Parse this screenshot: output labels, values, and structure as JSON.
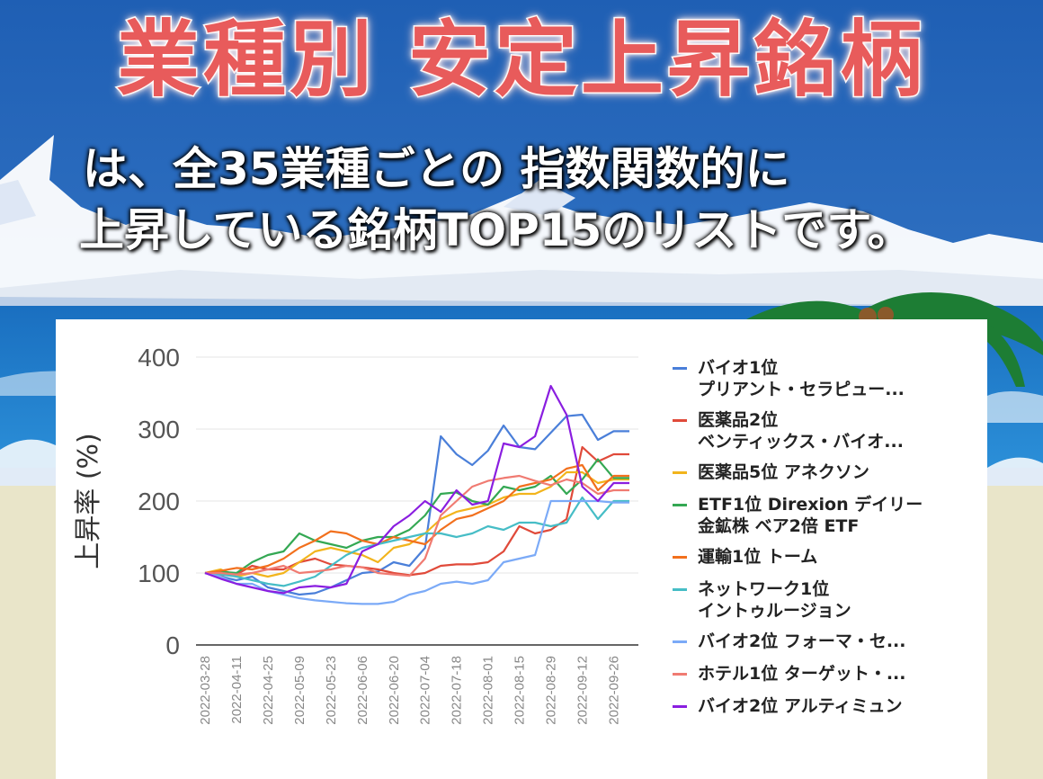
{
  "header": {
    "title": "業種別 安定上昇銘柄",
    "subtitle_line1": "は、全35業種ごとの 指数関数的に",
    "subtitle_line2": "上昇している銘柄TOP15のリストです。"
  },
  "colors": {
    "sky": "#2f6ec0",
    "cloud": "#ffffff",
    "sea": "#1778c9",
    "sand": "#e9e5c9",
    "title": "#e85b5b"
  },
  "chart_data": {
    "type": "line",
    "title": "",
    "xlabel": "",
    "ylabel": "上昇率 (%)",
    "ylim": [
      0,
      400
    ],
    "yticks": [
      "0",
      "100",
      "200",
      "300",
      "400"
    ],
    "grid": "horizontal",
    "legend_position": "right",
    "x": [
      "2022-03-28",
      "2022-04-04",
      "2022-04-11",
      "2022-04-18",
      "2022-04-25",
      "2022-05-02",
      "2022-05-09",
      "2022-05-16",
      "2022-05-23",
      "2022-05-30",
      "2022-06-06",
      "2022-06-13",
      "2022-06-20",
      "2022-06-27",
      "2022-07-04",
      "2022-07-11",
      "2022-07-18",
      "2022-07-25",
      "2022-08-01",
      "2022-08-08",
      "2022-08-15",
      "2022-08-22",
      "2022-08-29",
      "2022-09-05",
      "2022-09-12",
      "2022-09-19",
      "2022-09-26",
      "2022-10-03"
    ],
    "xtick_labels": [
      "2022-03-28",
      "2022-04-11",
      "2022-04-25",
      "2022-05-09",
      "2022-05-23",
      "2022-06-06",
      "2022-06-20",
      "2022-07-04",
      "2022-07-18",
      "2022-08-01",
      "2022-08-15",
      "2022-08-29",
      "2022-09-12",
      "2022-09-26"
    ],
    "series": [
      {
        "line1": "バイオ1位",
        "line2": "プリアント・セラピュー...",
        "color": "#4a7fd9",
        "values": [
          100,
          95,
          90,
          95,
          80,
          75,
          70,
          72,
          80,
          90,
          100,
          102,
          115,
          110,
          135,
          290,
          265,
          250,
          270,
          305,
          275,
          272,
          295,
          318,
          320,
          285,
          297,
          297
        ]
      },
      {
        "line1": "医薬品2位",
        "line2": "ベンティックス・バイオ...",
        "color": "#e04a3a",
        "values": [
          100,
          97,
          98,
          110,
          105,
          105,
          115,
          120,
          112,
          110,
          108,
          105,
          100,
          97,
          100,
          110,
          112,
          112,
          115,
          130,
          165,
          155,
          160,
          175,
          275,
          255,
          265,
          265
        ]
      },
      {
        "line1": "医薬品5位 アネクソン",
        "line2": "",
        "color": "#f2b41c",
        "values": [
          100,
          105,
          95,
          100,
          95,
          100,
          115,
          130,
          135,
          130,
          125,
          115,
          135,
          140,
          155,
          175,
          185,
          190,
          195,
          205,
          210,
          210,
          220,
          240,
          240,
          225,
          230,
          230
        ]
      },
      {
        "line1": "ETF1位 Direxion デイリー",
        "line2": "金鉱株 ベア2倍 ETF",
        "color": "#34a853",
        "values": [
          100,
          102,
          100,
          115,
          125,
          130,
          155,
          145,
          140,
          135,
          145,
          150,
          150,
          160,
          180,
          210,
          212,
          200,
          195,
          220,
          215,
          220,
          235,
          210,
          230,
          258,
          232,
          232
        ]
      },
      {
        "line1": "運輸1位 トーム",
        "line2": "",
        "color": "#f2701d",
        "values": [
          100,
          103,
          107,
          105,
          110,
          120,
          135,
          145,
          158,
          155,
          145,
          140,
          150,
          145,
          140,
          160,
          175,
          180,
          190,
          200,
          220,
          225,
          230,
          245,
          250,
          215,
          235,
          235
        ]
      },
      {
        "line1": "ネットワーク1位",
        "line2": "イントゥルージョン",
        "color": "#46bdc6",
        "values": [
          100,
          98,
          95,
          90,
          85,
          82,
          88,
          95,
          110,
          125,
          135,
          140,
          145,
          150,
          155,
          155,
          150,
          155,
          165,
          160,
          170,
          170,
          165,
          170,
          205,
          175,
          200,
          200
        ]
      },
      {
        "line1": "バイオ2位 フォーマ・セ...",
        "line2": "",
        "color": "#7baaf7",
        "values": [
          100,
          95,
          85,
          85,
          75,
          70,
          65,
          62,
          60,
          58,
          57,
          57,
          60,
          70,
          75,
          85,
          88,
          85,
          90,
          115,
          120,
          125,
          200,
          200,
          200,
          200,
          198,
          198
        ]
      },
      {
        "line1": "ホテル1位 ターゲット・...",
        "line2": "",
        "color": "#f07b72",
        "values": [
          100,
          100,
          98,
          100,
          105,
          110,
          100,
          102,
          105,
          110,
          108,
          100,
          98,
          96,
          120,
          180,
          200,
          220,
          228,
          232,
          235,
          228,
          222,
          230,
          225,
          210,
          215,
          215
        ]
      },
      {
        "line1": "バイオ2位 アルティミュン",
        "line2": "",
        "color": "#8a1ee0",
        "values": [
          100,
          92,
          85,
          80,
          75,
          72,
          80,
          82,
          80,
          85,
          130,
          140,
          165,
          180,
          200,
          185,
          215,
          195,
          200,
          280,
          275,
          290,
          360,
          320,
          220,
          200,
          225,
          225
        ]
      }
    ]
  }
}
